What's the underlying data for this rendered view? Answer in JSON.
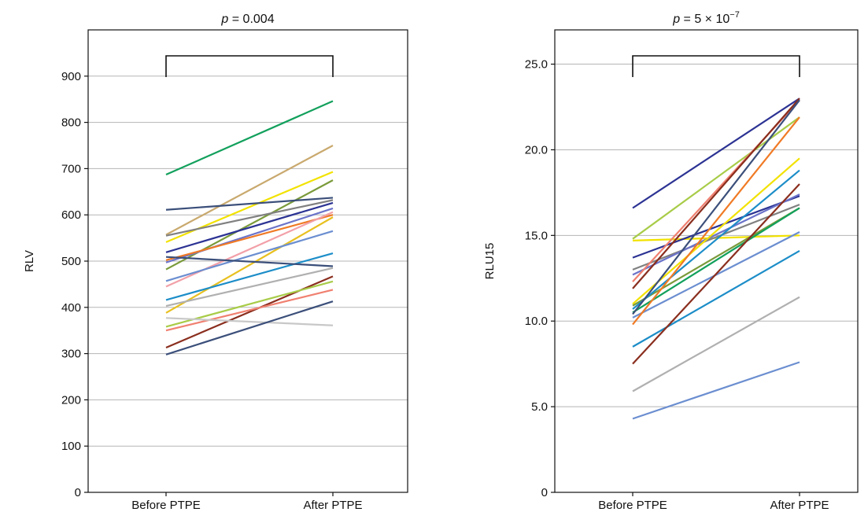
{
  "chart_data": [
    {
      "type": "line",
      "title": {
        "italic": "p",
        "rest": " = 0.004"
      },
      "xlabel": "",
      "ylabel": "RLV",
      "categories": [
        "Before PTPE",
        "After PTPE"
      ],
      "ylim": [
        0,
        1000
      ],
      "yticks": [
        0,
        100,
        200,
        300,
        400,
        500,
        600,
        700,
        800,
        900
      ],
      "ytick_labels": [
        "0",
        "100",
        "200",
        "300",
        "400",
        "500",
        "600",
        "700",
        "800",
        "900"
      ],
      "grid": true,
      "significance_bracket": true,
      "series": [
        {
          "color": "#12a05c",
          "values": [
            687,
            846
          ]
        },
        {
          "color": "#c9a96e",
          "values": [
            557,
            750
          ]
        },
        {
          "color": "#f2e200",
          "values": [
            541,
            693
          ]
        },
        {
          "color": "#7a9a3a",
          "values": [
            482,
            675
          ]
        },
        {
          "color": "#3b4f7a",
          "values": [
            611,
            637
          ]
        },
        {
          "color": "#808080",
          "values": [
            555,
            632
          ]
        },
        {
          "color": "#2c3393",
          "values": [
            519,
            626
          ]
        },
        {
          "color": "#6b73c9",
          "values": [
            497,
            614
          ]
        },
        {
          "color": "#f07a25",
          "values": [
            502,
            600
          ]
        },
        {
          "color": "#f2a0a8",
          "values": [
            445,
            606
          ]
        },
        {
          "color": "#e8c020",
          "values": [
            388,
            595
          ]
        },
        {
          "color": "#6b8ed0",
          "values": [
            457,
            565
          ]
        },
        {
          "color": "#1c8dc8",
          "values": [
            416,
            517
          ]
        },
        {
          "color": "#3b4f7a",
          "values": [
            509,
            489
          ]
        },
        {
          "color": "#b0b0b0",
          "values": [
            403,
            485
          ]
        },
        {
          "color": "#8a2e1e",
          "values": [
            313,
            467
          ]
        },
        {
          "color": "#a8cc48",
          "values": [
            358,
            456
          ]
        },
        {
          "color": "#f08070",
          "values": [
            350,
            438
          ]
        },
        {
          "color": "#c8c8c8",
          "values": [
            377,
            361
          ]
        },
        {
          "color": "#3b4f7a",
          "values": [
            298,
            413
          ]
        }
      ]
    },
    {
      "type": "line",
      "title": {
        "italic": "p",
        "rest": " = 5 × 10",
        "sup": "−7"
      },
      "xlabel": "",
      "ylabel": "RLU15",
      "categories": [
        "Before PTPE",
        "After PTPE"
      ],
      "ylim": [
        0,
        27
      ],
      "yticks": [
        0,
        5,
        10,
        15,
        20,
        25
      ],
      "ytick_labels": [
        "0",
        "5.0",
        "10.0",
        "15.0",
        "20.0",
        "25.0"
      ],
      "grid": true,
      "significance_bracket": true,
      "series": [
        {
          "color": "#2c3393",
          "values": [
            16.6,
            23.0
          ]
        },
        {
          "color": "#a8cc48",
          "values": [
            14.8,
            21.9
          ]
        },
        {
          "color": "#f2e200",
          "values": [
            14.7,
            15.0
          ]
        },
        {
          "color": "#2c3393",
          "values": [
            13.7,
            17.3
          ]
        },
        {
          "color": "#808080",
          "values": [
            13.0,
            16.8
          ]
        },
        {
          "color": "#6b73c9",
          "values": [
            12.7,
            17.4
          ]
        },
        {
          "color": "#f08070",
          "values": [
            12.3,
            22.9
          ]
        },
        {
          "color": "#8a2e1e",
          "values": [
            11.9,
            23.0
          ]
        },
        {
          "color": "#f2e200",
          "values": [
            11.0,
            19.5
          ]
        },
        {
          "color": "#7a9a3a",
          "values": [
            10.9,
            16.6
          ]
        },
        {
          "color": "#1c8dc8",
          "values": [
            10.7,
            18.8
          ]
        },
        {
          "color": "#12a05c",
          "values": [
            10.5,
            16.6
          ]
        },
        {
          "color": "#3b4f7a",
          "values": [
            10.4,
            22.9
          ]
        },
        {
          "color": "#6b8ed0",
          "values": [
            10.2,
            15.2
          ]
        },
        {
          "color": "#f07a25",
          "values": [
            9.8,
            21.9
          ]
        },
        {
          "color": "#1c8dc8",
          "values": [
            8.5,
            14.1
          ]
        },
        {
          "color": "#8a2e1e",
          "values": [
            7.5,
            18.0
          ]
        },
        {
          "color": "#b0b0b0",
          "values": [
            5.9,
            11.4
          ]
        },
        {
          "color": "#6b8ed0",
          "values": [
            4.3,
            7.6
          ]
        }
      ]
    }
  ]
}
